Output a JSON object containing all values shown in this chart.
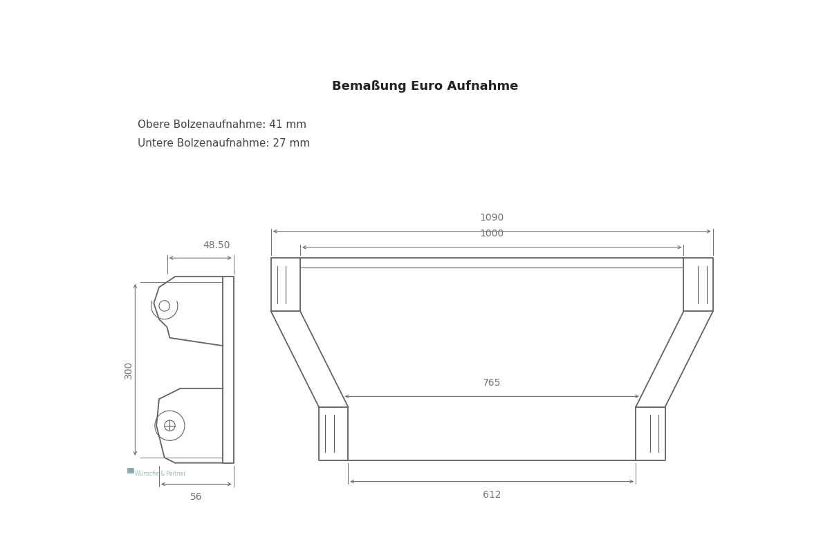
{
  "title": "Bemaßung Euro Aufnahme",
  "title_fontsize": 13,
  "title_fontweight": "bold",
  "info_line1": "Obere Bolzenaufnahme: 41 mm",
  "info_line2": "Untere Bolzenaufnahme: 27 mm",
  "info_fontsize": 11,
  "bg_color": "#ffffff",
  "line_color": "#606060",
  "dim_color": "#707070",
  "dim_fontsize": 10,
  "dim_1090": "1090",
  "dim_1000": "1000",
  "dim_765": "765",
  "dim_612": "612",
  "dim_48": "48.50",
  "dim_300": "300",
  "dim_56": "56"
}
